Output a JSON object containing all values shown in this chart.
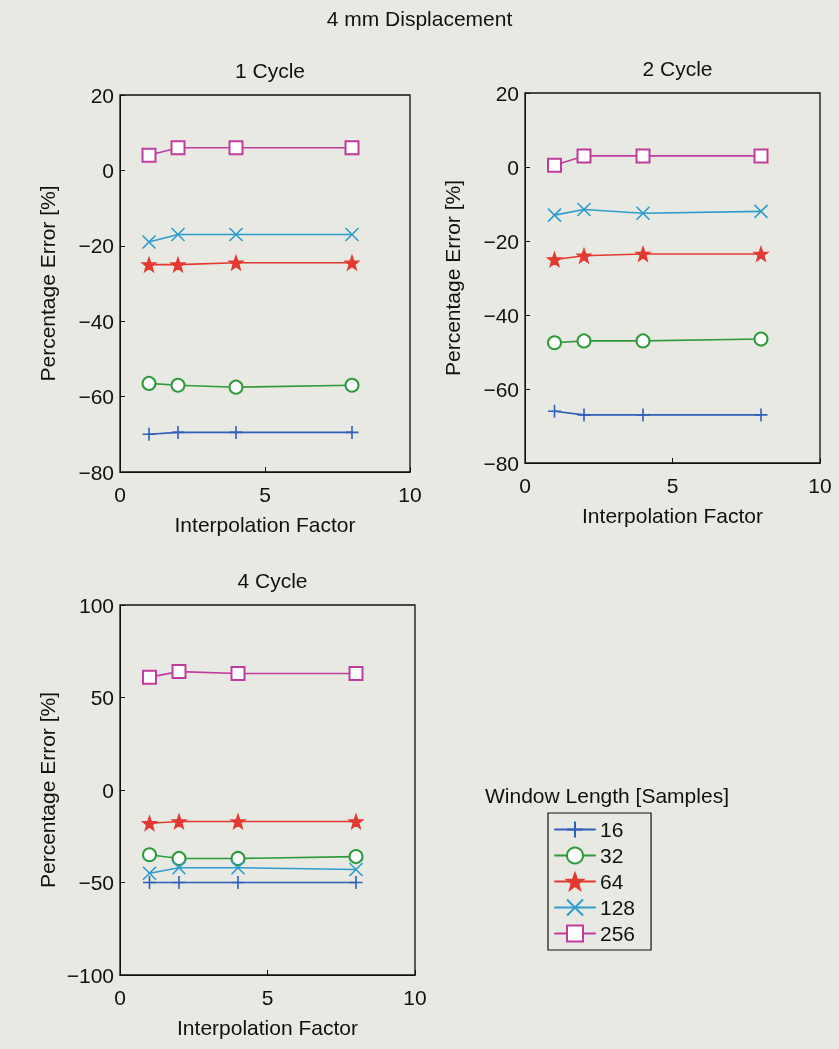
{
  "chart_data": [
    {
      "type": "line",
      "title": "1 Cycle",
      "annotations": [
        "4 mm Displacement"
      ],
      "xlabel": "Interpolation Factor",
      "ylabel": "Percentage Error [%]",
      "x": [
        1,
        2,
        4,
        8
      ],
      "xlim": [
        0,
        10
      ],
      "xticks": [
        0,
        5,
        10
      ],
      "ylim": [
        -80,
        20
      ],
      "yticks": [
        -80,
        -60,
        -40,
        -20,
        0,
        20
      ],
      "grid": false,
      "legend": false,
      "series": [
        {
          "color": "#2f5fb8",
          "marker": "plus",
          "values": [
            -70,
            -69.5,
            -69.5,
            -69.5
          ]
        },
        {
          "color": "#2f9a3c",
          "marker": "circle",
          "values": [
            -56.5,
            -57,
            -57.5,
            -57
          ]
        },
        {
          "color": "#e23a32",
          "marker": "star",
          "values": [
            -25,
            -25,
            -24.5,
            -24.5
          ]
        },
        {
          "color": "#2e9ccc",
          "marker": "cross",
          "values": [
            -19,
            -17,
            -17,
            -17
          ]
        },
        {
          "color": "#c03c9e",
          "marker": "square",
          "values": [
            4,
            6,
            6,
            6
          ]
        }
      ]
    },
    {
      "type": "line",
      "title": "2 Cycle",
      "xlabel": "Interpolation Factor",
      "ylabel": "Percentage Error [%]",
      "x": [
        1,
        2,
        4,
        8
      ],
      "xlim": [
        0,
        10
      ],
      "xticks": [
        0,
        5,
        10
      ],
      "ylim": [
        -80,
        20
      ],
      "yticks": [
        -80,
        -60,
        -40,
        -20,
        0,
        20
      ],
      "grid": false,
      "legend": false,
      "series": [
        {
          "color": "#2f5fb8",
          "marker": "plus",
          "values": [
            -66,
            -67,
            -67,
            -67
          ]
        },
        {
          "color": "#2f9a3c",
          "marker": "circle",
          "values": [
            -47.5,
            -47,
            -47,
            -46.5
          ]
        },
        {
          "color": "#e23a32",
          "marker": "star",
          "values": [
            -25,
            -24,
            -23.5,
            -23.5
          ]
        },
        {
          "color": "#2e9ccc",
          "marker": "cross",
          "values": [
            -13,
            -11.5,
            -12.5,
            -12
          ]
        },
        {
          "color": "#c03c9e",
          "marker": "square",
          "values": [
            0.5,
            3,
            3,
            3
          ]
        }
      ]
    },
    {
      "type": "line",
      "title": "4 Cycle",
      "xlabel": "Interpolation Factor",
      "ylabel": "Percentage Error [%]",
      "x": [
        1,
        2,
        4,
        8
      ],
      "xlim": [
        0,
        10
      ],
      "xticks": [
        0,
        5,
        10
      ],
      "ylim": [
        -100,
        100
      ],
      "yticks": [
        -100,
        -50,
        0,
        50,
        100
      ],
      "grid": false,
      "legend": "right",
      "legend_title": "Window Length [Samples]",
      "series": [
        {
          "name": "16",
          "color": "#2f5fb8",
          "marker": "plus",
          "values": [
            -50,
            -50,
            -50,
            -50
          ]
        },
        {
          "name": "32",
          "color": "#2f9a3c",
          "marker": "circle",
          "values": [
            -35,
            -37,
            -37,
            -36
          ]
        },
        {
          "name": "64",
          "color": "#e23a32",
          "marker": "star",
          "values": [
            -18,
            -17,
            -17,
            -17
          ]
        },
        {
          "name": "128",
          "color": "#2e9ccc",
          "marker": "cross",
          "values": [
            -45,
            -42,
            -42,
            -43
          ]
        },
        {
          "name": "256",
          "color": "#c03c9e",
          "marker": "square",
          "values": [
            61,
            64,
            63,
            63
          ]
        }
      ]
    }
  ]
}
